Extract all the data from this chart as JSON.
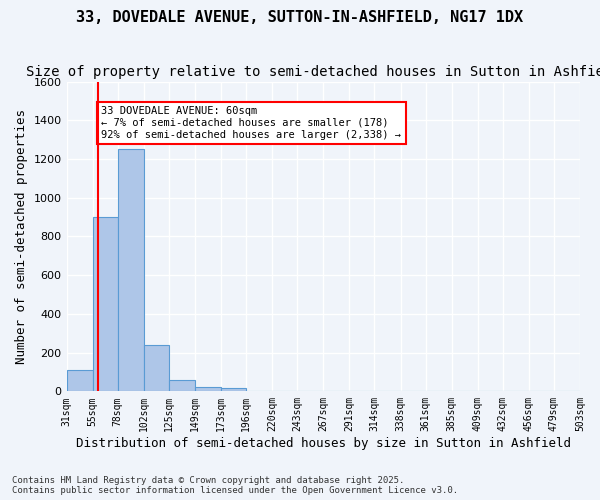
{
  "title": "33, DOVEDALE AVENUE, SUTTON-IN-ASHFIELD, NG17 1DX",
  "subtitle": "Size of property relative to semi-detached houses in Sutton in Ashfield",
  "xlabel": "Distribution of semi-detached houses by size in Sutton in Ashfield",
  "ylabel": "Number of semi-detached properties",
  "footnote": "Contains HM Land Registry data © Crown copyright and database right 2025.\nContains public sector information licensed under the Open Government Licence v3.0.",
  "bar_edges": [
    31,
    55,
    78,
    102,
    125,
    149,
    173,
    196,
    220,
    243,
    267,
    291,
    314,
    338,
    361,
    385,
    409,
    432,
    456,
    479,
    503
  ],
  "bar_labels": [
    "31sqm",
    "55sqm",
    "78sqm",
    "102sqm",
    "125sqm",
    "149sqm",
    "173sqm",
    "196sqm",
    "220sqm",
    "243sqm",
    "267sqm",
    "291sqm",
    "314sqm",
    "338sqm",
    "361sqm",
    "385sqm",
    "409sqm",
    "432sqm",
    "456sqm",
    "479sqm",
    "503sqm"
  ],
  "bar_heights": [
    110,
    900,
    1250,
    240,
    60,
    20,
    15,
    0,
    0,
    0,
    0,
    0,
    0,
    0,
    0,
    0,
    0,
    0,
    0,
    0
  ],
  "bar_color": "#aec6e8",
  "bar_edge_color": "#5a9bd4",
  "property_line_x": 60,
  "property_line_color": "#ff0000",
  "annotation_text": "33 DOVEDALE AVENUE: 60sqm\n← 7% of semi-detached houses are smaller (178)\n92% of semi-detached houses are larger (2,338) →",
  "annotation_box_color": "#ffffff",
  "annotation_box_edge_color": "#ff0000",
  "ylim": [
    0,
    1600
  ],
  "yticks": [
    0,
    200,
    400,
    600,
    800,
    1000,
    1200,
    1400,
    1600
  ],
  "background_color": "#f0f4fa",
  "plot_background_color": "#f0f4fa",
  "grid_color": "#ffffff",
  "title_fontsize": 11,
  "subtitle_fontsize": 10,
  "ylabel_fontsize": 9,
  "xlabel_fontsize": 9
}
